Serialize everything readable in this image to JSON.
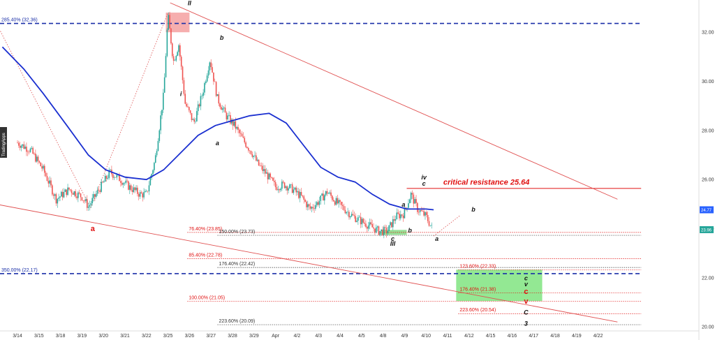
{
  "chart_data": {
    "type": "candlestick",
    "brand": "TradingApps",
    "y_axis": {
      "min": 19.95,
      "max": 33.2,
      "ticks": [
        20.0,
        22.0,
        24.0,
        26.0,
        28.0,
        30.0,
        32.0
      ]
    },
    "x_axis": {
      "ticks": [
        "3/14",
        "3/15",
        "3/18",
        "3/19",
        "3/20",
        "3/21",
        "3/22",
        "3/25",
        "3/26",
        "3/27",
        "3/28",
        "3/29",
        "Apr",
        "4/2",
        "4/3",
        "4/4",
        "4/5",
        "4/8",
        "4/9",
        "4/10",
        "4/11",
        "4/12",
        "4/15",
        "4/16",
        "4/17",
        "4/18",
        "4/19",
        "4/22"
      ]
    },
    "price_tags": [
      {
        "value": 24.77,
        "label": "24.77",
        "color": "#2962ff"
      },
      {
        "value": 23.96,
        "label": "23.96",
        "color": "#26a69a"
      }
    ],
    "price_path": [
      [
        0,
        27.5
      ],
      [
        0.6,
        27.2
      ],
      [
        1.2,
        26.4
      ],
      [
        1.8,
        25.2
      ],
      [
        2.4,
        25.6
      ],
      [
        3.0,
        25.3
      ],
      [
        3.3,
        24.9
      ],
      [
        3.8,
        25.6
      ],
      [
        4.3,
        26.3
      ],
      [
        4.8,
        26.0
      ],
      [
        5.2,
        25.7
      ],
      [
        5.7,
        25.4
      ],
      [
        6.0,
        25.4
      ],
      [
        6.4,
        26.8
      ],
      [
        6.8,
        29.5
      ],
      [
        7.0,
        32.7
      ],
      [
        7.25,
        30.8
      ],
      [
        7.5,
        31.5
      ],
      [
        7.8,
        29.1
      ],
      [
        8.2,
        28.3
      ],
      [
        8.6,
        29.5
      ],
      [
        8.95,
        30.9
      ],
      [
        9.3,
        29.3
      ],
      [
        9.7,
        28.6
      ],
      [
        10.1,
        28.2
      ],
      [
        10.5,
        27.6
      ],
      [
        10.9,
        27.1
      ],
      [
        11.2,
        26.6
      ],
      [
        11.6,
        26.2
      ],
      [
        12.0,
        25.7
      ],
      [
        12.4,
        25.8
      ],
      [
        12.8,
        25.6
      ],
      [
        13.2,
        25.3
      ],
      [
        13.6,
        24.8
      ],
      [
        14.0,
        25.1
      ],
      [
        14.4,
        25.5
      ],
      [
        14.8,
        25.1
      ],
      [
        15.2,
        24.8
      ],
      [
        15.6,
        24.5
      ],
      [
        16.0,
        24.3
      ],
      [
        16.4,
        24.1
      ],
      [
        16.8,
        23.9
      ],
      [
        17.2,
        23.9
      ],
      [
        17.6,
        24.5
      ],
      [
        17.95,
        24.6
      ],
      [
        18.3,
        25.4
      ],
      [
        18.6,
        24.8
      ],
      [
        19.0,
        24.5
      ],
      [
        19.3,
        23.96
      ]
    ],
    "moving_average": {
      "color": "#1a2fd0",
      "path": [
        [
          -0.7,
          31.4
        ],
        [
          0.3,
          30.5
        ],
        [
          1.2,
          29.5
        ],
        [
          2.3,
          28.2
        ],
        [
          3.3,
          27.0
        ],
        [
          4.1,
          26.4
        ],
        [
          5.0,
          26.1
        ],
        [
          6.0,
          26.0
        ],
        [
          6.8,
          26.4
        ],
        [
          7.6,
          27.1
        ],
        [
          8.4,
          27.8
        ],
        [
          9.2,
          28.2
        ],
        [
          10.0,
          28.4
        ],
        [
          10.8,
          28.6
        ],
        [
          11.7,
          28.7
        ],
        [
          12.5,
          28.3
        ],
        [
          13.3,
          27.4
        ],
        [
          14.1,
          26.5
        ],
        [
          14.9,
          26.1
        ],
        [
          15.7,
          25.9
        ],
        [
          16.5,
          25.4
        ],
        [
          17.3,
          25.0
        ],
        [
          18.1,
          24.8
        ],
        [
          19.0,
          24.8
        ],
        [
          19.35,
          24.77
        ]
      ]
    },
    "horizontal_levels": [
      {
        "value": 32.36,
        "label": "285.40% (32.36)",
        "color": "#1a2fa8",
        "style": "dash-bold",
        "x_start": -1,
        "x_end": 29
      },
      {
        "value": 22.17,
        "label": "350.00% (22.17)",
        "color": "#1a2fa8",
        "style": "dash-bold",
        "x_start": -1,
        "x_end": 29
      },
      {
        "value": 25.64,
        "label": "",
        "color": "#e01010",
        "style": "solid",
        "x_start": 18.1,
        "x_end": 29
      },
      {
        "value": 23.85,
        "label": "76.40% (23.85)",
        "color": "#e01010",
        "style": "dot",
        "x_start": 7.9,
        "x_end": 29
      },
      {
        "value": 23.73,
        "label": "150.00% (23.73)",
        "color": "#333333",
        "style": "dot",
        "x_start": 9.3,
        "x_end": 29
      },
      {
        "value": 22.78,
        "label": "85.40% (22.78)",
        "color": "#e01010",
        "style": "dot",
        "x_start": 7.9,
        "x_end": 29
      },
      {
        "value": 22.42,
        "label": "176.40% (22.42)",
        "color": "#333333",
        "style": "dot",
        "x_start": 9.3,
        "x_end": 29
      },
      {
        "value": 22.33,
        "label": "123.60% (22.33)",
        "color": "#e01010",
        "style": "dot",
        "x_start": 20.5,
        "x_end": 29
      },
      {
        "value": 21.38,
        "label": "176.40% (21.38)",
        "color": "#e01010",
        "style": "dot",
        "x_start": 20.5,
        "x_end": 29
      },
      {
        "value": 21.05,
        "label": "100.00% (21.05)",
        "color": "#e01010",
        "style": "dot",
        "x_start": 7.9,
        "x_end": 29
      },
      {
        "value": 20.54,
        "label": "223.60% (20.54)",
        "color": "#e01010",
        "style": "dot",
        "x_start": 20.5,
        "x_end": 29
      },
      {
        "value": 20.09,
        "label": "223.60% (20.09)",
        "color": "#333333",
        "style": "dot",
        "x_start": 9.3,
        "x_end": 29
      }
    ],
    "trend_lines": [
      {
        "from": [
          7.1,
          33.2
        ],
        "to": [
          27.9,
          25.2
        ],
        "color": "#e05050"
      },
      {
        "from": [
          -1.0,
          25.0
        ],
        "to": [
          27.9,
          20.2
        ],
        "color": "#e05050"
      },
      {
        "from": [
          -1.0,
          32.4
        ],
        "to": [
          3.4,
          24.85
        ],
        "color": "#e06060",
        "dotted": true
      },
      {
        "from": [
          3.4,
          24.85
        ],
        "to": [
          7.0,
          32.8
        ],
        "color": "#e06060",
        "dotted": true
      },
      {
        "from": [
          19.35,
          23.7
        ],
        "to": [
          20.6,
          24.55
        ],
        "color": "#e06060",
        "dotted": true
      }
    ],
    "zones": [
      {
        "x0": 6.9,
        "x1": 8.0,
        "y0": 32.0,
        "y1": 32.8,
        "color": "#f28b8b",
        "opacity": 0.7
      },
      {
        "x0": 16.9,
        "x1": 18.1,
        "y0": 23.75,
        "y1": 23.95,
        "color": "#7dd87d",
        "opacity": 0.8
      },
      {
        "x0": 20.4,
        "x1": 24.4,
        "y0": 21.05,
        "y1": 22.33,
        "color": "#6fe06f",
        "opacity": 0.75
      }
    ],
    "wave_labels": [
      {
        "text": "II",
        "x": 8.0,
        "y": 33.1,
        "style": "black"
      },
      {
        "text": "i",
        "x": 7.6,
        "y": 29.4,
        "style": "black"
      },
      {
        "text": "b",
        "x": 9.5,
        "y": 31.7,
        "style": "black"
      },
      {
        "text": "a",
        "x": 9.3,
        "y": 27.4,
        "style": "black"
      },
      {
        "text": "a",
        "x": 3.5,
        "y": 23.9,
        "style": "red"
      },
      {
        "text": "a",
        "x": 17.95,
        "y": 24.9,
        "style": "black"
      },
      {
        "text": "b",
        "x": 18.25,
        "y": 23.85,
        "style": "black"
      },
      {
        "text": "c",
        "x": 17.45,
        "y": 23.5,
        "style": "black"
      },
      {
        "text": "III",
        "x": 17.45,
        "y": 23.3,
        "style": "black"
      },
      {
        "text": "iv",
        "x": 18.9,
        "y": 26.0,
        "style": "black"
      },
      {
        "text": "c",
        "x": 18.9,
        "y": 25.75,
        "style": "black"
      },
      {
        "text": "a",
        "x": 19.5,
        "y": 23.5,
        "style": "black"
      },
      {
        "text": "b",
        "x": 21.2,
        "y": 24.7,
        "style": "black"
      },
      {
        "text": "c",
        "x": 23.65,
        "y": 21.9,
        "style": "black"
      },
      {
        "text": "v",
        "x": 23.65,
        "y": 21.65,
        "style": "black"
      },
      {
        "text": "c",
        "x": 23.65,
        "y": 21.35,
        "style": "red"
      },
      {
        "text": "v",
        "x": 23.65,
        "y": 20.95,
        "style": "red"
      },
      {
        "text": "C",
        "x": 23.65,
        "y": 20.5,
        "style": "black-large"
      },
      {
        "text": "3",
        "x": 23.65,
        "y": 20.05,
        "style": "black-large"
      }
    ],
    "annotations": [
      {
        "text": "critical resistance 25.64",
        "x": 19.8,
        "y": 25.8,
        "color": "#e01010"
      }
    ]
  }
}
